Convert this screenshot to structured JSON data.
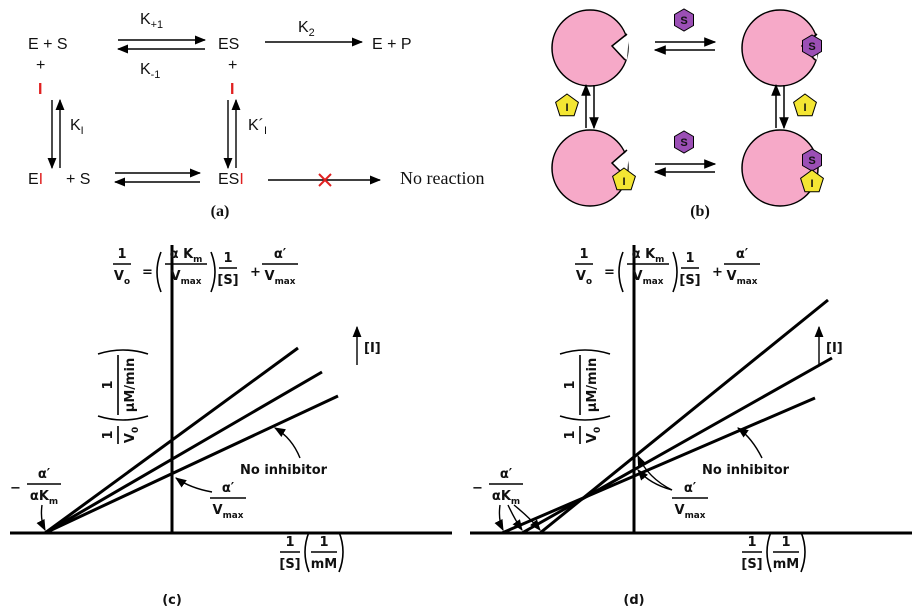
{
  "panel_a": {
    "label": "(a)",
    "e_s": "E + S",
    "k_forward": {
      "symbol": "K",
      "sub": "+1"
    },
    "k_reverse": {
      "symbol": "K",
      "sub": "-1"
    },
    "es": "ES",
    "k2": {
      "symbol": "K",
      "sub": "2"
    },
    "e_p": "E + P",
    "plus_left": "+",
    "inhibitor_left": "I",
    "plus_right": "+",
    "inhibitor_right": "I",
    "ki": {
      "symbol": "K",
      "sub": "I"
    },
    "ki_prime": {
      "symbol": "K´",
      "sub": "I"
    },
    "ei": {
      "base": "E",
      "inhibitor": "I"
    },
    "plus_s": "+ S",
    "esi": {
      "base": "ES",
      "inhibitor": "I"
    },
    "no_reaction": "No reaction"
  },
  "panel_b": {
    "label": "(b)",
    "substrate_tags": [
      "S",
      "S",
      "S",
      "S"
    ],
    "inhibitor_tags": [
      "I",
      "I",
      "I",
      "I"
    ]
  },
  "panel_c": {
    "label": "(c)",
    "equation": {
      "lhs_num": "1",
      "lhs_den": "V",
      "lhs_den_sub": "o",
      "equals": "=",
      "slope_num": "α K",
      "slope_num_sub": "m",
      "slope_den": "V",
      "slope_den_sub": "max",
      "s_num": "1",
      "s_den": "[S]",
      "plus": "+",
      "int_num": "α′",
      "int_den": "V",
      "int_den_sub": "max"
    },
    "y_axis_label": {
      "num": "1",
      "den": "V",
      "den_sub": "0",
      "unit_num": "1",
      "unit_den": "μM/min"
    },
    "x_axis_label": {
      "num": "1",
      "den": "[S]",
      "unit_num": "1",
      "unit_den": "mM"
    },
    "increasing_inhibitor": "[I]",
    "no_inhibitor": "No inhibitor",
    "x_intercept_label": {
      "sign": "−",
      "num": "α′",
      "den": "αK",
      "den_sub": "m"
    },
    "y_intercept_label": {
      "num": "α′",
      "den": "V",
      "den_sub": "max"
    }
  },
  "panel_d": {
    "label": "(d)",
    "equation": {
      "lhs_num": "1",
      "lhs_den": "V",
      "lhs_den_sub": "o",
      "equals": "=",
      "slope_num": "α K",
      "slope_num_sub": "m",
      "slope_den": "V",
      "slope_den_sub": "max",
      "s_num": "1",
      "s_den": "[S]",
      "plus": "+",
      "int_num": "α′",
      "int_den": "V",
      "int_den_sub": "max"
    },
    "y_axis_label": {
      "num": "1",
      "den": "V",
      "den_sub": "0",
      "unit_num": "1",
      "unit_den": "μM/min"
    },
    "x_axis_label": {
      "num": "1",
      "den": "[S]",
      "unit_num": "1",
      "unit_den": "mM"
    },
    "increasing_inhibitor": "[I]",
    "no_inhibitor": "No inhibitor",
    "x_intercept_label": {
      "sign": "−",
      "num": "α′",
      "den": "αK",
      "den_sub": "m"
    },
    "y_intercept_label": {
      "num": "α′",
      "den": "V",
      "den_sub": "max"
    }
  }
}
